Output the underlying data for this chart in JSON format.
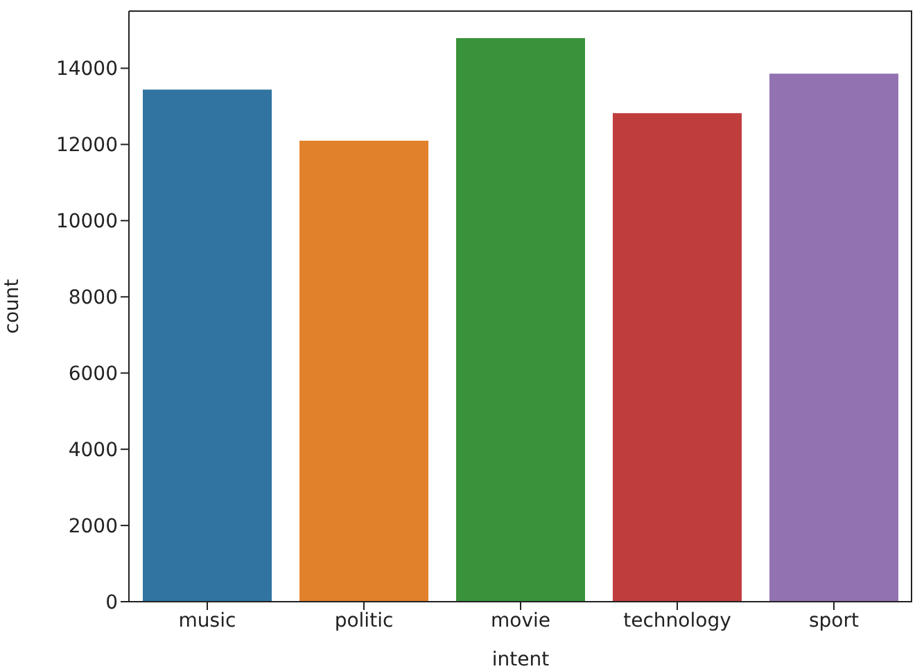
{
  "chart_data": {
    "type": "bar",
    "xlabel": "intent",
    "ylabel": "count",
    "categories": [
      "music",
      "politic",
      "movie",
      "technology",
      "sport"
    ],
    "values": [
      13440,
      12100,
      14790,
      12820,
      13860
    ],
    "colors": [
      "#3274a1",
      "#e1812c",
      "#3a923a",
      "#c03d3e",
      "#9372b2"
    ],
    "ylim": [
      0,
      15500
    ],
    "yticks": [
      0,
      2000,
      4000,
      6000,
      8000,
      10000,
      12000,
      14000
    ],
    "grid": false,
    "legend": false
  }
}
